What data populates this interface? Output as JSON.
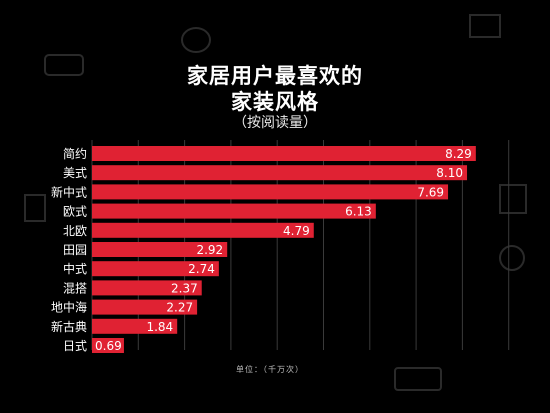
{
  "chart_data": {
    "type": "bar",
    "orientation": "horizontal",
    "title_line1": "家居用户最喜欢的",
    "title_line2": "家装风格",
    "subtitle": "（按阅读量）",
    "unit_note": "单位：（千万次）",
    "categories": [
      "简约",
      "美式",
      "新中式",
      "欧式",
      "北欧",
      "田园",
      "中式",
      "混搭",
      "地中海",
      "新古典",
      "日式"
    ],
    "values": [
      8.29,
      8.1,
      7.69,
      6.13,
      4.79,
      2.92,
      2.74,
      2.37,
      2.27,
      1.84,
      0.69
    ],
    "value_labels": [
      "8.29",
      "8.10",
      "7.69",
      "6.13",
      "4.79",
      "2.92",
      "2.74",
      "2.37",
      "2.27",
      "1.84",
      "0.69"
    ],
    "xlim": [
      0,
      9
    ],
    "grid": true,
    "colors": {
      "bar": "#e02233",
      "grid": "#3a3a3a",
      "background": "#000000"
    }
  }
}
